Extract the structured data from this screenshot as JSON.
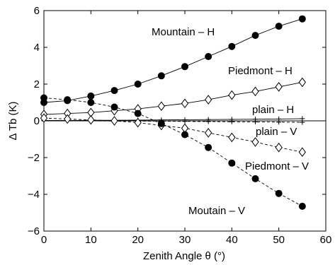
{
  "chart_data": {
    "type": "line",
    "title": "",
    "xlabel": "Zenith Angle θ (°)",
    "ylabel": "Δ Tb (K)",
    "xlim": [
      0,
      60
    ],
    "ylim": [
      -6,
      6
    ],
    "xticks": [
      0,
      10,
      20,
      30,
      40,
      50,
      60
    ],
    "yticks": [
      -6,
      -4,
      -2,
      0,
      2,
      4,
      6
    ],
    "grid": false,
    "legend": "none",
    "x": [
      0,
      5,
      10,
      15,
      20,
      25,
      30,
      35,
      40,
      45,
      50,
      55
    ],
    "series": [
      {
        "name": "Mountain – H",
        "marker": "filled-circle",
        "line": "solid",
        "values": [
          1.0,
          1.1,
          1.35,
          1.65,
          2.0,
          2.45,
          2.95,
          3.5,
          4.05,
          4.65,
          5.15,
          5.55
        ]
      },
      {
        "name": "Piedmont – H",
        "marker": "open-diamond",
        "line": "solid",
        "values": [
          0.35,
          0.4,
          0.45,
          0.55,
          0.65,
          0.8,
          0.95,
          1.15,
          1.4,
          1.6,
          1.85,
          2.1
        ]
      },
      {
        "name": "plain – H",
        "marker": "plus",
        "line": "solid",
        "values": [
          0.02,
          0.02,
          0.03,
          0.03,
          0.04,
          0.05,
          0.06,
          0.07,
          0.08,
          0.09,
          0.1,
          0.12
        ]
      },
      {
        "name": "plain – V",
        "marker": "plus",
        "line": "dashed",
        "values": [
          0.0,
          0.0,
          0.0,
          -0.01,
          -0.01,
          -0.02,
          -0.03,
          -0.04,
          -0.05,
          -0.06,
          -0.07,
          -0.08
        ]
      },
      {
        "name": "Piedmont – V",
        "marker": "open-diamond",
        "line": "dashed",
        "values": [
          0.15,
          0.1,
          0.05,
          0.0,
          -0.1,
          -0.25,
          -0.4,
          -0.65,
          -0.9,
          -1.15,
          -1.45,
          -1.7
        ]
      },
      {
        "name": "Moutain – V",
        "marker": "filled-circle",
        "line": "dashed",
        "values": [
          1.25,
          1.15,
          1.0,
          0.75,
          0.4,
          -0.15,
          -0.75,
          -1.45,
          -2.3,
          -3.15,
          -3.95,
          -4.65
        ]
      }
    ],
    "annotations": [
      {
        "text": "Mountain – H",
        "series": 0
      },
      {
        "text": "Piedmont – H",
        "series": 1
      },
      {
        "text": "plain – H",
        "series": 2
      },
      {
        "text": "plain – V",
        "series": 3
      },
      {
        "text": "Piedmont – V",
        "series": 4
      },
      {
        "text": "Moutain – V",
        "series": 5
      }
    ]
  }
}
